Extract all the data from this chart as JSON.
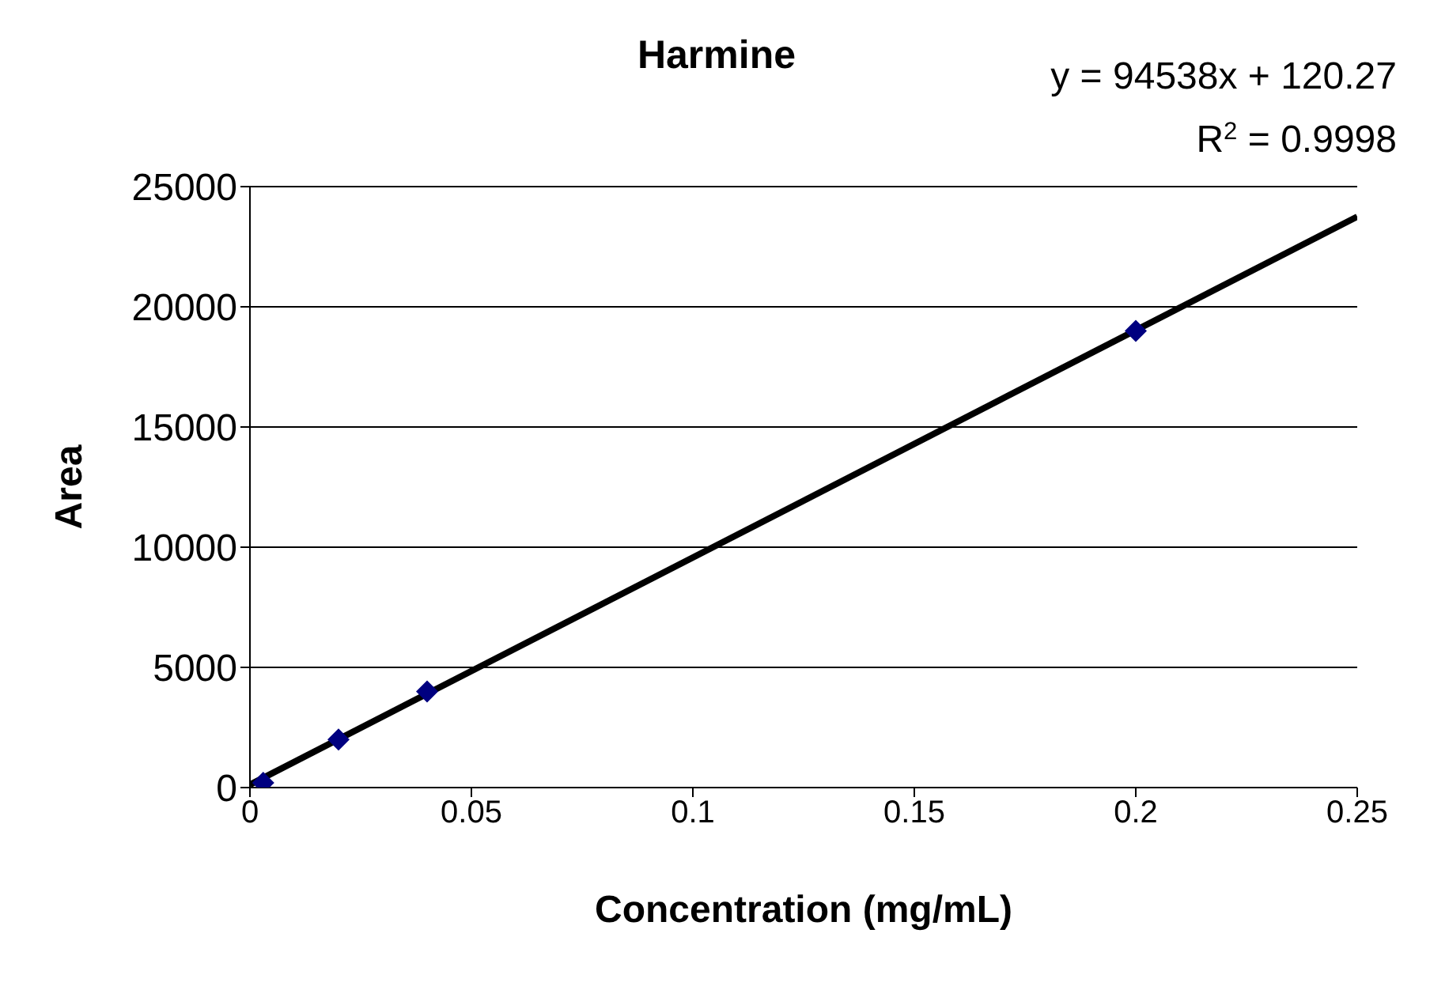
{
  "chart_data": {
    "type": "scatter",
    "title": "Harmine",
    "xlabel": "Concentration (mg/mL)",
    "ylabel": "Area",
    "annotations": [
      "y = 94538x + 120.27",
      "R$^{2}$ = 0.9998"
    ],
    "series": [
      {
        "color": "#000080",
        "x": [
          0.003,
          0.02,
          0.04,
          0.2
        ],
        "values": [
          200,
          2000,
          4000,
          19000
        ],
        "marker": "diamond"
      },
      {
        "type": "line",
        "color": "#000000",
        "x": [
          0,
          0.25
        ],
        "values": [
          120,
          23750
        ],
        "marker": "none",
        "line_style": "solid"
      }
    ],
    "xlim": [
      0,
      0.25
    ],
    "xticks": [
      0,
      0.05,
      0.1,
      0.15,
      0.2,
      0.25
    ],
    "ylim": [
      0,
      25000
    ],
    "yticks": [
      0,
      5000,
      10000,
      15000,
      20000,
      25000
    ],
    "grid": "y"
  }
}
